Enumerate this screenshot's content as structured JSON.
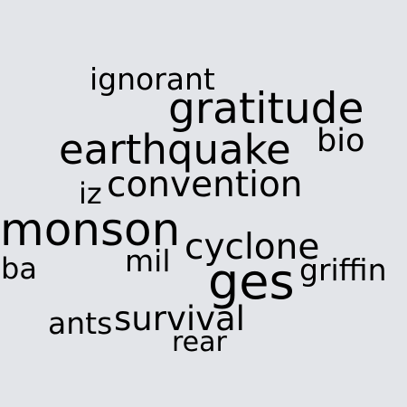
{
  "colors": {
    "background": "#e3e5e9",
    "text": "#000000"
  },
  "words": {
    "ignorant": "ignorant",
    "gratitude": "gratitude",
    "earthquake": "earthquake",
    "bio": "bio",
    "iz": "iz",
    "convention": "convention",
    "monson": "monson",
    "cyclone": "cyclone",
    "ba": "ba",
    "mil": "mil",
    "ges": "ges",
    "griffin": "griffin",
    "ants": "ants",
    "survival": "survival",
    "rear": "rear"
  }
}
